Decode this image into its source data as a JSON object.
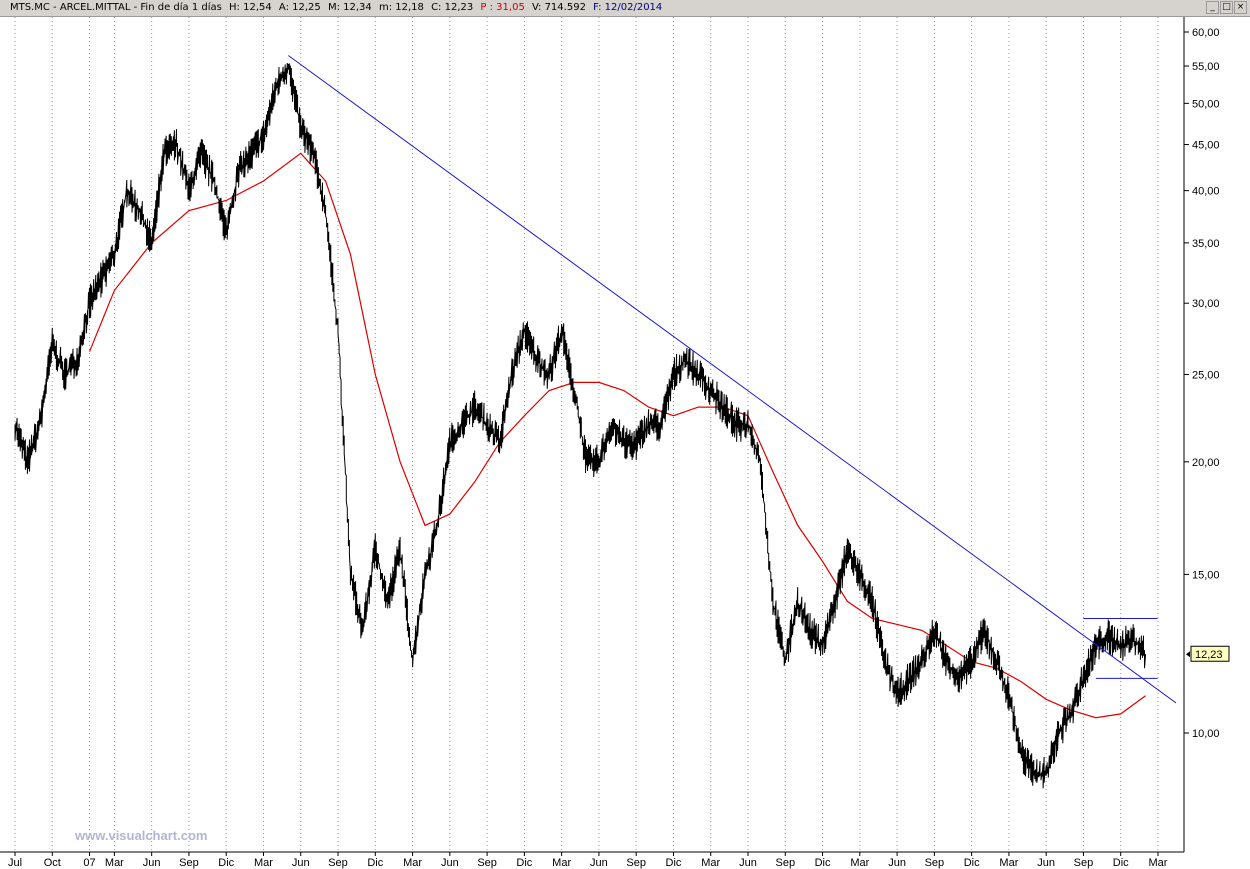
{
  "header": {
    "symbol": "MTS.MC - ARCEL.MITTAL - Fin de día 1 días",
    "h": "H: 12,54",
    "a": "A: 12,25",
    "m": "M: 12,34",
    "min": "m: 12,18",
    "c": "C: 12,23",
    "p": "P : 31,05",
    "v": "V: 714.592",
    "f": "F: 12/02/2014",
    "min_btn": "_",
    "max_btn": "□",
    "close_btn": "×"
  },
  "watermark": "www.visualchart.com",
  "last_price_label": "12,23",
  "colors": {
    "price": "#000000",
    "moving_average": "#dd0000",
    "trendline": "#1a1acc",
    "last_price_box": "#ffffc0"
  },
  "chart_data": {
    "type": "line",
    "y_scale": "log",
    "ylim": [
      7.5,
      62
    ],
    "y_ticks": [
      10,
      15,
      20,
      25,
      30,
      35,
      40,
      45,
      50,
      55,
      60
    ],
    "y_tick_labels": [
      "10,00",
      "15,00",
      "20,00",
      "25,00",
      "30,00",
      "35,00",
      "40,00",
      "45,00",
      "50,00",
      "55,00",
      "60,00"
    ],
    "x_range": [
      "2006-07",
      "2014-03"
    ],
    "x_ticks": [
      {
        "label": "Jul",
        "date": "2006-07"
      },
      {
        "label": "Oct",
        "date": "2006-10"
      },
      {
        "label": "07",
        "date": "2007-01"
      },
      {
        "label": "Mar",
        "date": "2007-03"
      },
      {
        "label": "Jun",
        "date": "2007-06"
      },
      {
        "label": "Sep",
        "date": "2007-09"
      },
      {
        "label": "Dic",
        "date": "2007-12"
      },
      {
        "label": "Mar",
        "date": "2008-03"
      },
      {
        "label": "Jun",
        "date": "2008-06"
      },
      {
        "label": "Sep",
        "date": "2008-09"
      },
      {
        "label": "Dic",
        "date": "2008-12"
      },
      {
        "label": "Mar",
        "date": "2009-03"
      },
      {
        "label": "Jun",
        "date": "2009-06"
      },
      {
        "label": "Sep",
        "date": "2009-09"
      },
      {
        "label": "Dic",
        "date": "2009-12"
      },
      {
        "label": "Mar",
        "date": "2010-03"
      },
      {
        "label": "Jun",
        "date": "2010-06"
      },
      {
        "label": "Sep",
        "date": "2010-09"
      },
      {
        "label": "Dic",
        "date": "2010-12"
      },
      {
        "label": "Mar",
        "date": "2011-03"
      },
      {
        "label": "Jun",
        "date": "2011-06"
      },
      {
        "label": "Sep",
        "date": "2011-09"
      },
      {
        "label": "Dic",
        "date": "2011-12"
      },
      {
        "label": "Mar",
        "date": "2012-03"
      },
      {
        "label": "Jun",
        "date": "2012-06"
      },
      {
        "label": "Sep",
        "date": "2012-09"
      },
      {
        "label": "Dic",
        "date": "2012-12"
      },
      {
        "label": "Mar",
        "date": "2013-03"
      },
      {
        "label": "Jun",
        "date": "2013-06"
      },
      {
        "label": "Sep",
        "date": "2013-09"
      },
      {
        "label": "Dic",
        "date": "2013-12"
      },
      {
        "label": "Mar",
        "date": "2014-03"
      }
    ],
    "grid": "vertical dotted",
    "series": [
      {
        "kind": "price",
        "points": [
          [
            "2006-07",
            22
          ],
          [
            "2006-08",
            20
          ],
          [
            "2006-09",
            22
          ],
          [
            "2006-10",
            27
          ],
          [
            "2006-11",
            25
          ],
          [
            "2006-12",
            26
          ],
          [
            "2007-01",
            30
          ],
          [
            "2007-02",
            32
          ],
          [
            "2007-03",
            34
          ],
          [
            "2007-04",
            40
          ],
          [
            "2007-05",
            38
          ],
          [
            "2007-06",
            35
          ],
          [
            "2007-07",
            44
          ],
          [
            "2007-08",
            45
          ],
          [
            "2007-09",
            40
          ],
          [
            "2007-10",
            44
          ],
          [
            "2007-11",
            41
          ],
          [
            "2007-12",
            36
          ],
          [
            "2008-01",
            42
          ],
          [
            "2008-02",
            44
          ],
          [
            "2008-03",
            46
          ],
          [
            "2008-04",
            52
          ],
          [
            "2008-05",
            55
          ],
          [
            "2008-06",
            47
          ],
          [
            "2008-07",
            44
          ],
          [
            "2008-08",
            38
          ],
          [
            "2008-09",
            28
          ],
          [
            "2008-10",
            15
          ],
          [
            "2008-11",
            13
          ],
          [
            "2008-12",
            16
          ],
          [
            "2009-01",
            14
          ],
          [
            "2009-02",
            16
          ],
          [
            "2009-03",
            12
          ],
          [
            "2009-04",
            15
          ],
          [
            "2009-05",
            17
          ],
          [
            "2009-06",
            21
          ],
          [
            "2009-07",
            22
          ],
          [
            "2009-08",
            23
          ],
          [
            "2009-09",
            22
          ],
          [
            "2009-10",
            21
          ],
          [
            "2009-11",
            25
          ],
          [
            "2009-12",
            28
          ],
          [
            "2010-01",
            26
          ],
          [
            "2010-02",
            25
          ],
          [
            "2010-03",
            28
          ],
          [
            "2010-04",
            24
          ],
          [
            "2010-05",
            20
          ],
          [
            "2010-06",
            20
          ],
          [
            "2010-07",
            22
          ],
          [
            "2010-08",
            21
          ],
          [
            "2010-09",
            21
          ],
          [
            "2010-10",
            22
          ],
          [
            "2010-11",
            22
          ],
          [
            "2010-12",
            25
          ],
          [
            "2011-01",
            26
          ],
          [
            "2011-02",
            25
          ],
          [
            "2011-03",
            24
          ],
          [
            "2011-04",
            23
          ],
          [
            "2011-05",
            22
          ],
          [
            "2011-06",
            22
          ],
          [
            "2011-07",
            20
          ],
          [
            "2011-08",
            14
          ],
          [
            "2011-09",
            12
          ],
          [
            "2011-10",
            14
          ],
          [
            "2011-11",
            13
          ],
          [
            "2011-12",
            12.5
          ],
          [
            "2012-01",
            14
          ],
          [
            "2012-02",
            16
          ],
          [
            "2012-03",
            15
          ],
          [
            "2012-04",
            14
          ],
          [
            "2012-05",
            12
          ],
          [
            "2012-06",
            11
          ],
          [
            "2012-07",
            11.5
          ],
          [
            "2012-08",
            12
          ],
          [
            "2012-09",
            13
          ],
          [
            "2012-10",
            12
          ],
          [
            "2012-11",
            11.5
          ],
          [
            "2012-12",
            12
          ],
          [
            "2013-01",
            13
          ],
          [
            "2013-02",
            12
          ],
          [
            "2013-03",
            11
          ],
          [
            "2013-04",
            9.5
          ],
          [
            "2013-05",
            9
          ],
          [
            "2013-06",
            9
          ],
          [
            "2013-07",
            10
          ],
          [
            "2013-08",
            10.5
          ],
          [
            "2013-09",
            11.5
          ],
          [
            "2013-10",
            12.5
          ],
          [
            "2013-11",
            12.8
          ],
          [
            "2013-12",
            12.5
          ],
          [
            "2014-01",
            12.7
          ],
          [
            "2014-02",
            12.23
          ]
        ]
      },
      {
        "kind": "moving_average",
        "points": [
          [
            "2007-01",
            26.5
          ],
          [
            "2007-03",
            31
          ],
          [
            "2007-06",
            35
          ],
          [
            "2007-09",
            38
          ],
          [
            "2007-12",
            39
          ],
          [
            "2008-03",
            41
          ],
          [
            "2008-06",
            44
          ],
          [
            "2008-08",
            41
          ],
          [
            "2008-10",
            34
          ],
          [
            "2008-12",
            25
          ],
          [
            "2009-02",
            20
          ],
          [
            "2009-04",
            17
          ],
          [
            "2009-06",
            17.5
          ],
          [
            "2009-08",
            19
          ],
          [
            "2009-10",
            21
          ],
          [
            "2009-12",
            22.5
          ],
          [
            "2010-02",
            24
          ],
          [
            "2010-04",
            24.5
          ],
          [
            "2010-06",
            24.5
          ],
          [
            "2010-08",
            24
          ],
          [
            "2010-10",
            23
          ],
          [
            "2010-12",
            22.5
          ],
          [
            "2011-02",
            23
          ],
          [
            "2011-04",
            23
          ],
          [
            "2011-06",
            22.5
          ],
          [
            "2011-08",
            19.5
          ],
          [
            "2011-10",
            17
          ],
          [
            "2011-12",
            15.5
          ],
          [
            "2012-02",
            14
          ],
          [
            "2012-04",
            13.4
          ],
          [
            "2012-06",
            13.2
          ],
          [
            "2012-08",
            13
          ],
          [
            "2012-10",
            12.5
          ],
          [
            "2012-12",
            12
          ],
          [
            "2013-02",
            11.8
          ],
          [
            "2013-04",
            11.4
          ],
          [
            "2013-06",
            10.9
          ],
          [
            "2013-08",
            10.6
          ],
          [
            "2013-10",
            10.4
          ],
          [
            "2013-12",
            10.5
          ],
          [
            "2014-02",
            11
          ]
        ]
      }
    ],
    "trendline": {
      "from": [
        "2008-05",
        56.5
      ],
      "to": [
        "2014-03",
        10.8
      ]
    },
    "range_lines": [
      {
        "from": "2013-09",
        "to": "2014-02",
        "y": 13.4
      },
      {
        "from": "2013-10",
        "to": "2014-02",
        "y": 11.5
      }
    ],
    "last_value": 12.23
  }
}
